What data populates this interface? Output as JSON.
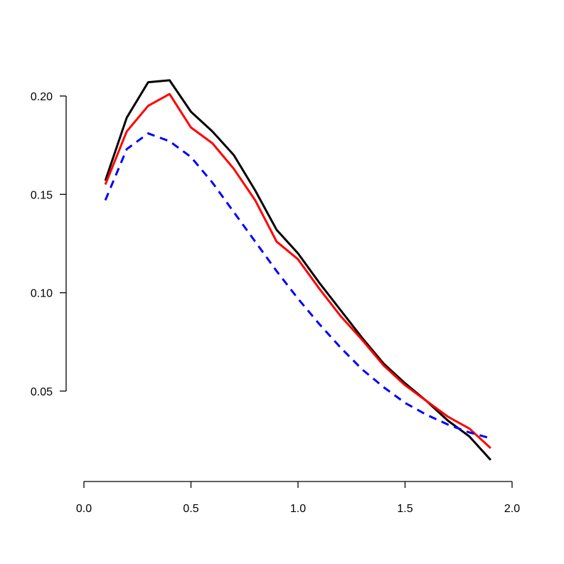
{
  "chart_data": {
    "type": "line",
    "title": "",
    "xlabel": "",
    "ylabel": "",
    "xlim": [
      0.0,
      2.0
    ],
    "ylim": [
      0.05,
      0.2
    ],
    "x_ticks": [
      "0.0",
      "0.5",
      "1.0",
      "1.5",
      "2.0"
    ],
    "y_ticks": [
      "0.05",
      "0.10",
      "0.15",
      "0.20"
    ],
    "grid": false,
    "x": [
      0.1,
      0.2,
      0.3,
      0.4,
      0.5,
      0.6,
      0.7,
      0.8,
      0.9,
      1.0,
      1.1,
      1.2,
      1.3,
      1.4,
      1.5,
      1.6,
      1.7,
      1.8,
      1.9
    ],
    "series": [
      {
        "color": "#000000",
        "style": "solid",
        "values": [
          0.157,
          0.189,
          0.207,
          0.208,
          0.192,
          0.182,
          0.17,
          0.152,
          0.132,
          0.12,
          0.105,
          0.091,
          0.077,
          0.064,
          0.054,
          0.045,
          0.035,
          0.027,
          0.015
        ]
      },
      {
        "color": "#ff0000",
        "style": "solid",
        "values": [
          0.155,
          0.182,
          0.195,
          0.201,
          0.184,
          0.176,
          0.163,
          0.147,
          0.126,
          0.117,
          0.102,
          0.088,
          0.076,
          0.063,
          0.053,
          0.045,
          0.037,
          0.031,
          0.021
        ]
      },
      {
        "color": "#0000ff",
        "style": "dashed",
        "values": [
          0.147,
          0.173,
          0.181,
          0.177,
          0.169,
          0.156,
          0.141,
          0.126,
          0.111,
          0.097,
          0.084,
          0.072,
          0.061,
          0.052,
          0.044,
          0.038,
          0.033,
          0.029,
          0.026
        ]
      }
    ]
  }
}
